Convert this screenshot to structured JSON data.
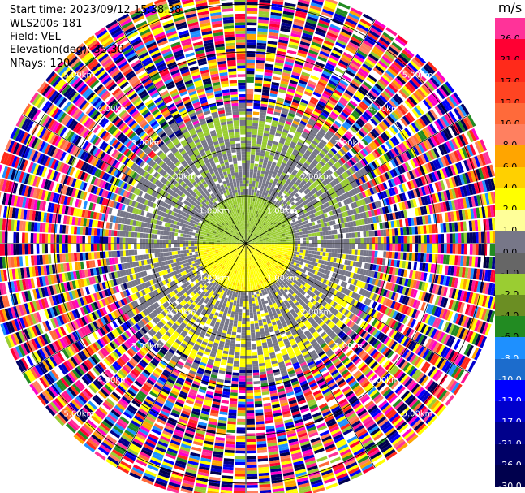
{
  "header": {
    "start_time": "Start time: 2023/09/12 15:38:38",
    "device": "WLS200s-181",
    "field": "Field: VEL",
    "elevation": "Elevation(deg): 35.30",
    "nrays": "NRays: 120"
  },
  "colorbar": {
    "unit": "m/s",
    "bins": [
      {
        "label": "26.0",
        "color": "#ff3399"
      },
      {
        "label": "21.0",
        "color": "#ff0033"
      },
      {
        "label": "17.0",
        "color": "#ff2a1a"
      },
      {
        "label": "13.0",
        "color": "#ff4422"
      },
      {
        "label": "10.0",
        "color": "#ff6a3a"
      },
      {
        "label": "8.0",
        "color": "#ff8060"
      },
      {
        "label": "6.0",
        "color": "#ffa500"
      },
      {
        "label": "4.0",
        "color": "#ffd000"
      },
      {
        "label": "2.0",
        "color": "#ffff00"
      },
      {
        "label": "1.0",
        "color": "#ffff99"
      },
      {
        "label": "0.0",
        "color": "#777788"
      },
      {
        "label": "-1.0",
        "color": "#666666"
      },
      {
        "label": "-2.0",
        "color": "#9acd32"
      },
      {
        "label": "-4.0",
        "color": "#6b8e23"
      },
      {
        "label": "-6.0",
        "color": "#228b22"
      },
      {
        "label": "-8.0",
        "color": "#1e90ff"
      },
      {
        "label": "-10.0",
        "color": "#1c6ccc"
      },
      {
        "label": "-13.0",
        "color": "#0000ff"
      },
      {
        "label": "-17.0",
        "color": "#0000cc"
      },
      {
        "label": "-21.0",
        "color": "#00008b"
      },
      {
        "label": "-26.0",
        "color": "#000066"
      },
      {
        "label": "-30.0",
        "color": "#00004d"
      }
    ]
  },
  "chart_data": {
    "type": "heatmap",
    "projection": "polar-ppi",
    "field": "VEL",
    "elevation_deg": 35.3,
    "n_rays": 120,
    "range_rings_km": [
      1.0,
      2.0,
      3.0,
      4.0,
      5.0
    ],
    "ring_labels": [
      "1.00km",
      "2.00km",
      "3.00km",
      "4.00km",
      "5.00km"
    ],
    "max_range_km": 5.4,
    "spoke_interval_deg": 30,
    "near_field": {
      "range_km": [
        0,
        1.0
      ],
      "northern_half_velocity_ms": -2.0,
      "southern_half_velocity_ms": 2.0
    },
    "mid_field": {
      "range_km": [
        1.0,
        2.6
      ],
      "dominant_velocity_ms": 0.0,
      "northern_edge_velocity_ms": -2.0,
      "southern_edge_velocity_ms": 2.0
    },
    "far_field": {
      "range_km": [
        2.6,
        5.4
      ],
      "description_value": "noise"
    }
  }
}
